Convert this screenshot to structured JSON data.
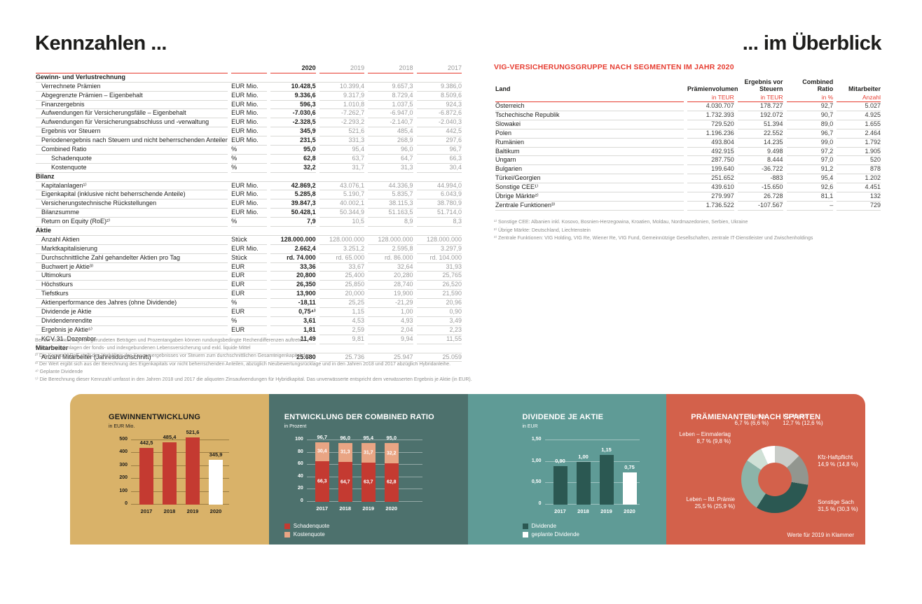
{
  "page": {
    "title_left": "Kennzahlen ...",
    "title_right": "... im Überblick"
  },
  "colors": {
    "accent_red": "#e63c30",
    "bar_red": "#c43a31",
    "salmon": "#e9a584",
    "dark_teal": "#2b5852",
    "panel_gold": "#d9b269",
    "panel_dark_teal": "#4d716d",
    "panel_teal": "#5f9b96",
    "panel_coral": "#d3614b"
  },
  "kpi_table": {
    "years": [
      "2020",
      "2019",
      "2018",
      "2017"
    ],
    "sections": [
      {
        "title": "Gewinn- und Verlustrechnung",
        "rows": [
          {
            "label": "Verrechnete Prämien",
            "unit": "EUR Mio.",
            "values": [
              "10.428,5",
              "10.399,4",
              "9.657,3",
              "9.386,0"
            ]
          },
          {
            "label": "Abgegrenzte Prämien – Eigenbehalt",
            "unit": "EUR Mio.",
            "values": [
              "9.336,6",
              "9.317,9",
              "8.729,4",
              "8.509,6"
            ]
          },
          {
            "label": "Finanzergebnis",
            "unit": "EUR Mio.",
            "values": [
              "596,3",
              "1.010,8",
              "1.037,5",
              "924,3"
            ]
          },
          {
            "label": "Aufwendungen für Versicherungsfälle – Eigenbehalt",
            "unit": "EUR Mio.",
            "values": [
              "-7.030,6",
              "-7.262,7",
              "-6.947,0",
              "-6.872,6"
            ]
          },
          {
            "label": "Aufwendungen für Versicherungsabschluss und -verwaltung",
            "unit": "EUR Mio.",
            "values": [
              "-2.328,5",
              "-2.293,2",
              "-2.140,7",
              "-2.040,3"
            ]
          },
          {
            "label": "Ergebnis vor Steuern",
            "unit": "EUR Mio.",
            "values": [
              "345,9",
              "521,6",
              "485,4",
              "442,5"
            ]
          },
          {
            "label": "Periodenergebnis nach Steuern und nicht beherrschenden Anteilen",
            "unit": "EUR Mio.",
            "values": [
              "231,5",
              "331,3",
              "268,9",
              "297,6"
            ]
          },
          {
            "label": "Combined Ratio",
            "unit": "%",
            "values": [
              "95,0",
              "95,4",
              "96,0",
              "96,7"
            ]
          },
          {
            "label": "Schadenquote",
            "indent": true,
            "unit": "%",
            "values": [
              "62,8",
              "63,7",
              "64,7",
              "66,3"
            ]
          },
          {
            "label": "Kostenquote",
            "indent": true,
            "unit": "%",
            "values": [
              "32,2",
              "31,7",
              "31,3",
              "30,4"
            ]
          }
        ]
      },
      {
        "title": "Bilanz",
        "rows": [
          {
            "label": "Kapitalanlagen¹⁾",
            "unit": "EUR Mio.",
            "values": [
              "42.869,2",
              "43.076,1",
              "44.336,9",
              "44.994,0"
            ]
          },
          {
            "label": "Eigenkapital (inklusive nicht beherrschende Anteile)",
            "unit": "EUR Mio.",
            "values": [
              "5.285,8",
              "5.190,7",
              "5.835,7",
              "6.043,9"
            ]
          },
          {
            "label": "Versicherungstechnische Rückstellungen",
            "unit": "EUR Mio.",
            "values": [
              "39.847,3",
              "40.002,1",
              "38.115,3",
              "38.780,9"
            ]
          },
          {
            "label": "Bilanzsumme",
            "unit": "EUR Mio.",
            "values": [
              "50.428,1",
              "50.344,9",
              "51.163,5",
              "51.714,0"
            ]
          },
          {
            "label": "Return on Equity (RoE)²⁾",
            "unit": "%",
            "values": [
              "7,9",
              "10,5",
              "8,9",
              "8,3"
            ]
          }
        ]
      },
      {
        "title": "Aktie",
        "rows": [
          {
            "label": "Anzahl Aktien",
            "unit": "Stück",
            "values": [
              "128.000.000",
              "128.000.000",
              "128.000.000",
              "128.000.000"
            ]
          },
          {
            "label": "Marktkapitalisierung",
            "unit": "EUR Mio.",
            "values": [
              "2.662,4",
              "3.251,2",
              "2.595,8",
              "3.297,9"
            ]
          },
          {
            "label": "Durchschnittliche Zahl gehandelter Aktien pro Tag",
            "unit": "Stück",
            "values": [
              "rd. 74.000",
              "rd. 65.000",
              "rd. 86.000",
              "rd. 104.000"
            ]
          },
          {
            "label": "Buchwert je Aktie³⁾",
            "unit": "EUR",
            "values": [
              "33,36",
              "33,67",
              "32,64",
              "31,93"
            ]
          },
          {
            "label": "Ultimokurs",
            "unit": "EUR",
            "values": [
              "20,800",
              "25,400",
              "20,280",
              "25,765"
            ]
          },
          {
            "label": "Höchstkurs",
            "unit": "EUR",
            "values": [
              "26,350",
              "25,850",
              "28,740",
              "26,520"
            ]
          },
          {
            "label": "Tiefstkurs",
            "unit": "EUR",
            "values": [
              "13,900",
              "20,000",
              "19,900",
              "21,590"
            ]
          },
          {
            "label": "Aktienperformance des Jahres (ohne Dividende)",
            "unit": "%",
            "values": [
              "-18,11",
              "25,25",
              "-21,29",
              "20,96"
            ]
          },
          {
            "label": "Dividende je Aktie",
            "unit": "EUR",
            "values": [
              "0,75⁴⁾",
              "1,15",
              "1,00",
              "0,90"
            ]
          },
          {
            "label": "Dividendenrendite",
            "unit": "%",
            "values": [
              "3,61",
              "4,53",
              "4,93",
              "3,49"
            ]
          },
          {
            "label": "Ergebnis je Aktie⁵⁾",
            "unit": "EUR",
            "values": [
              "1,81",
              "2,59",
              "2,04",
              "2,23"
            ]
          },
          {
            "label": "KGV 31. Dezember",
            "unit": "",
            "values": [
              "11,49",
              "9,81",
              "9,94",
              "11,55"
            ]
          }
        ]
      },
      {
        "title": "Mitarbeiter",
        "rows": [
          {
            "label": "Anzahl Mitarbeiter (Jahresdurchschnitt)",
            "unit": "",
            "values": [
              "25.680",
              "25.736",
              "25.947",
              "25.059"
            ]
          }
        ]
      }
    ],
    "footnotes": [
      "Bei der Summierung von gerundeten Beträgen und Prozentangaben können rundungsbedingte Rechendifferenzen auftreten.",
      "¹⁾ Inkl. Kapitalanlagen der fonds- und indexgebundenen Lebensversicherung und exkl. liquide Mittel",
      "²⁾ Die Kennzahl RoE stellt das Verhältnis des Konzernergebnisses vor Steuern zum durchschnittlichen Gesamteigenkapital dar.",
      "³⁾ Der Wert ergibt sich aus der Berechnung des Eigenkapitals vor nicht beherrschenden Anteilen, abzüglich Neubewertungsrücklage und in den Jahren 2018 und 2017 abzüglich Hybridanleihe.",
      "⁴⁾ Geplante Dividende",
      "⁵⁾ Die Berechnung dieser Kennzahl umfasst in den Jahren 2018 und 2017 die aliquoten Zinsaufwendungen für Hybridkapital. Das unverwässerte entspricht dem verwässerten Ergebnis je Aktie (in EUR)."
    ]
  },
  "segment_table": {
    "title": "VIG-VERSICHERUNGSGRUPPE NACH SEGMENTEN IM JAHR 2020",
    "columns": [
      "Land",
      "Prämienvolumen",
      "Ergebnis vor Steuern",
      "Combined Ratio",
      "Mitarbeiter"
    ],
    "subheaders": [
      "",
      "in TEUR",
      "in TEUR",
      "in %",
      "Anzahl"
    ],
    "rows": [
      {
        "land": "Österreich",
        "values": [
          "4.030.707",
          "178.727",
          "92,7",
          "5.027"
        ]
      },
      {
        "land": "Tschechische Republik",
        "values": [
          "1.732.393",
          "192.072",
          "90,7",
          "4.925"
        ]
      },
      {
        "land": "Slowakei",
        "values": [
          "729.520",
          "51.394",
          "89,0",
          "1.655"
        ]
      },
      {
        "land": "Polen",
        "values": [
          "1.196.236",
          "22.552",
          "96,7",
          "2.464"
        ]
      },
      {
        "land": "Rumänien",
        "values": [
          "493.804",
          "14.235",
          "99,0",
          "1.792"
        ]
      },
      {
        "land": "Baltikum",
        "values": [
          "492.915",
          "9.498",
          "97,2",
          "1.905"
        ]
      },
      {
        "land": "Ungarn",
        "values": [
          "287.750",
          "8.444",
          "97,0",
          "520"
        ]
      },
      {
        "land": "Bulgarien",
        "values": [
          "199.640",
          "-36.722",
          "91,2",
          "878"
        ]
      },
      {
        "land": "Türkei/Georgien",
        "values": [
          "251.652",
          "-883",
          "95,4",
          "1.202"
        ]
      },
      {
        "land": "Sonstige CEE¹⁾",
        "values": [
          "439.610",
          "-15.650",
          "92,6",
          "4.451"
        ]
      },
      {
        "land": "Übrige Märkte²⁾",
        "values": [
          "279.997",
          "26.728",
          "81,1",
          "132"
        ]
      },
      {
        "land": "Zentrale Funktionen³⁾",
        "values": [
          "1.736.522",
          "-107.567",
          "–",
          "729"
        ]
      }
    ],
    "footnotes": [
      "¹⁾ Sonstige CEE: Albanien inkl. Kosovo, Bosnien-Herzegowina, Kroatien, Moldau, Nordmazedonien, Serbien, Ukraine",
      "²⁾ Übrige Märkte: Deutschland, Liechtenstein",
      "³⁾ Zentrale Funktionen: VIG Holding, VIG Re, Wiener Re, VIG Fund, Gemeinnützige Gesellschaften, zentrale IT-Dienstleister und Zwischenholdings"
    ]
  },
  "chart_data": [
    {
      "type": "bar",
      "title": "GEWINNENTWICKLUNG",
      "subtitle": "in EUR Mio.",
      "categories": [
        "2017",
        "2018",
        "2019",
        "2020"
      ],
      "values": [
        442.5,
        485.4,
        521.6,
        345.9
      ],
      "value_labels": [
        "442,5",
        "485,4",
        "521,6",
        "345,9"
      ],
      "bar_colors": [
        "#c43a31",
        "#c43a31",
        "#c43a31",
        "#ffffff"
      ],
      "ylim": [
        0,
        500
      ],
      "yticks": [
        {
          "v": 0,
          "label": "0"
        },
        {
          "v": 100,
          "label": "100"
        },
        {
          "v": 200,
          "label": "200"
        },
        {
          "v": 300,
          "label": "300"
        },
        {
          "v": 400,
          "label": "400"
        },
        {
          "v": 500,
          "label": "500"
        }
      ],
      "grid": true
    },
    {
      "type": "stacked-bar",
      "title": "ENTWICKLUNG DER COMBINED RATIO",
      "subtitle": "in Prozent",
      "categories": [
        "2017",
        "2018",
        "2019",
        "2020"
      ],
      "series": [
        {
          "name": "Schadenquote",
          "color": "#c43a31",
          "values": [
            66.3,
            64.7,
            63.7,
            62.8
          ],
          "labels": [
            "66,3",
            "64,7",
            "63,7",
            "62,8"
          ]
        },
        {
          "name": "Kostenquote",
          "color": "#e9a584",
          "values": [
            30.4,
            31.3,
            31.7,
            32.2
          ],
          "labels": [
            "30,4",
            "31,3",
            "31,7",
            "32,2"
          ]
        }
      ],
      "totals": [
        "96,7",
        "96,0",
        "95,4",
        "95,0"
      ],
      "ylim": [
        0,
        100
      ],
      "yticks": [
        {
          "v": 0,
          "label": "0"
        },
        {
          "v": 20,
          "label": "20"
        },
        {
          "v": 40,
          "label": "40"
        },
        {
          "v": 60,
          "label": "60"
        },
        {
          "v": 80,
          "label": "80"
        },
        {
          "v": 100,
          "label": "100"
        }
      ],
      "legend": [
        {
          "label": "Schadenquote",
          "color": "#c43a31"
        },
        {
          "label": "Kostenquote",
          "color": "#e9a584"
        }
      ],
      "grid": true
    },
    {
      "type": "bar",
      "title": "DIVIDENDE JE AKTIE",
      "subtitle": "in EUR",
      "categories": [
        "2017",
        "2018",
        "2019",
        "2020"
      ],
      "values": [
        0.9,
        1.0,
        1.15,
        0.75
      ],
      "value_labels": [
        "0,90",
        "1,00",
        "1,15",
        "0,75"
      ],
      "bar_colors": [
        "#2b5852",
        "#2b5852",
        "#2b5852",
        "#ffffff"
      ],
      "ylim": [
        0,
        1.5
      ],
      "yticks": [
        {
          "v": 0,
          "label": "0"
        },
        {
          "v": 0.5,
          "label": "0,50"
        },
        {
          "v": 1.0,
          "label": "1,00"
        },
        {
          "v": 1.5,
          "label": "1,50"
        }
      ],
      "legend": [
        {
          "label": "Dividende",
          "color": "#2b5852"
        },
        {
          "label": "geplante Dividende",
          "color": "#ffffff"
        }
      ],
      "grid": true
    },
    {
      "type": "donut",
      "title": "PRÄMIENANTEIL NACH SPARTEN",
      "note": "Werte für 2019 in Klammer",
      "segments": [
        {
          "name": "Kfz-Kasko",
          "value": 12.7,
          "label": "12,7 % (12,6 %)",
          "color": "#c9ccc8"
        },
        {
          "name": "Kfz-Haftpflicht",
          "value": 14.9,
          "label": "14,9 % (14,8 %)",
          "color": "#92968f"
        },
        {
          "name": "Sonstige Sach",
          "value": 31.5,
          "label": "31,5 % (30,3 %)",
          "color": "#2b5852"
        },
        {
          "name": "Leben – lfd. Prämie",
          "value": 25.5,
          "label": "25,5 % (25,9 %)",
          "color": "#8cb4a9"
        },
        {
          "name": "Leben – Einmalerlag",
          "value": 8.7,
          "label": "8,7 % (9,8 %)",
          "color": "#cfe0d6"
        },
        {
          "name": "Kranken",
          "value": 6.7,
          "label": "6,7 % (6,6 %)",
          "color": "#ffffff"
        }
      ]
    }
  ]
}
